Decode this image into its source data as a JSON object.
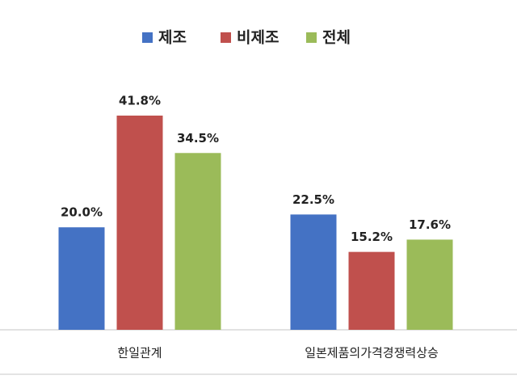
{
  "chart_data": {
    "type": "bar",
    "categories": [
      "한일관계",
      "일본제품의가격경쟁력상승"
    ],
    "series": [
      {
        "name": "제조",
        "color": "#4472c4",
        "values": [
          20.0,
          22.5
        ],
        "value_labels": [
          "20.0%",
          "22.5%"
        ]
      },
      {
        "name": "비제조",
        "color": "#c0504d",
        "values": [
          41.8,
          15.2
        ],
        "value_labels": [
          "41.8%",
          "15.2%"
        ]
      },
      {
        "name": "전체",
        "color": "#9bbb59",
        "values": [
          34.5,
          17.6
        ],
        "value_labels": [
          "34.5%",
          "17.6%"
        ]
      }
    ],
    "legend": "top"
  }
}
